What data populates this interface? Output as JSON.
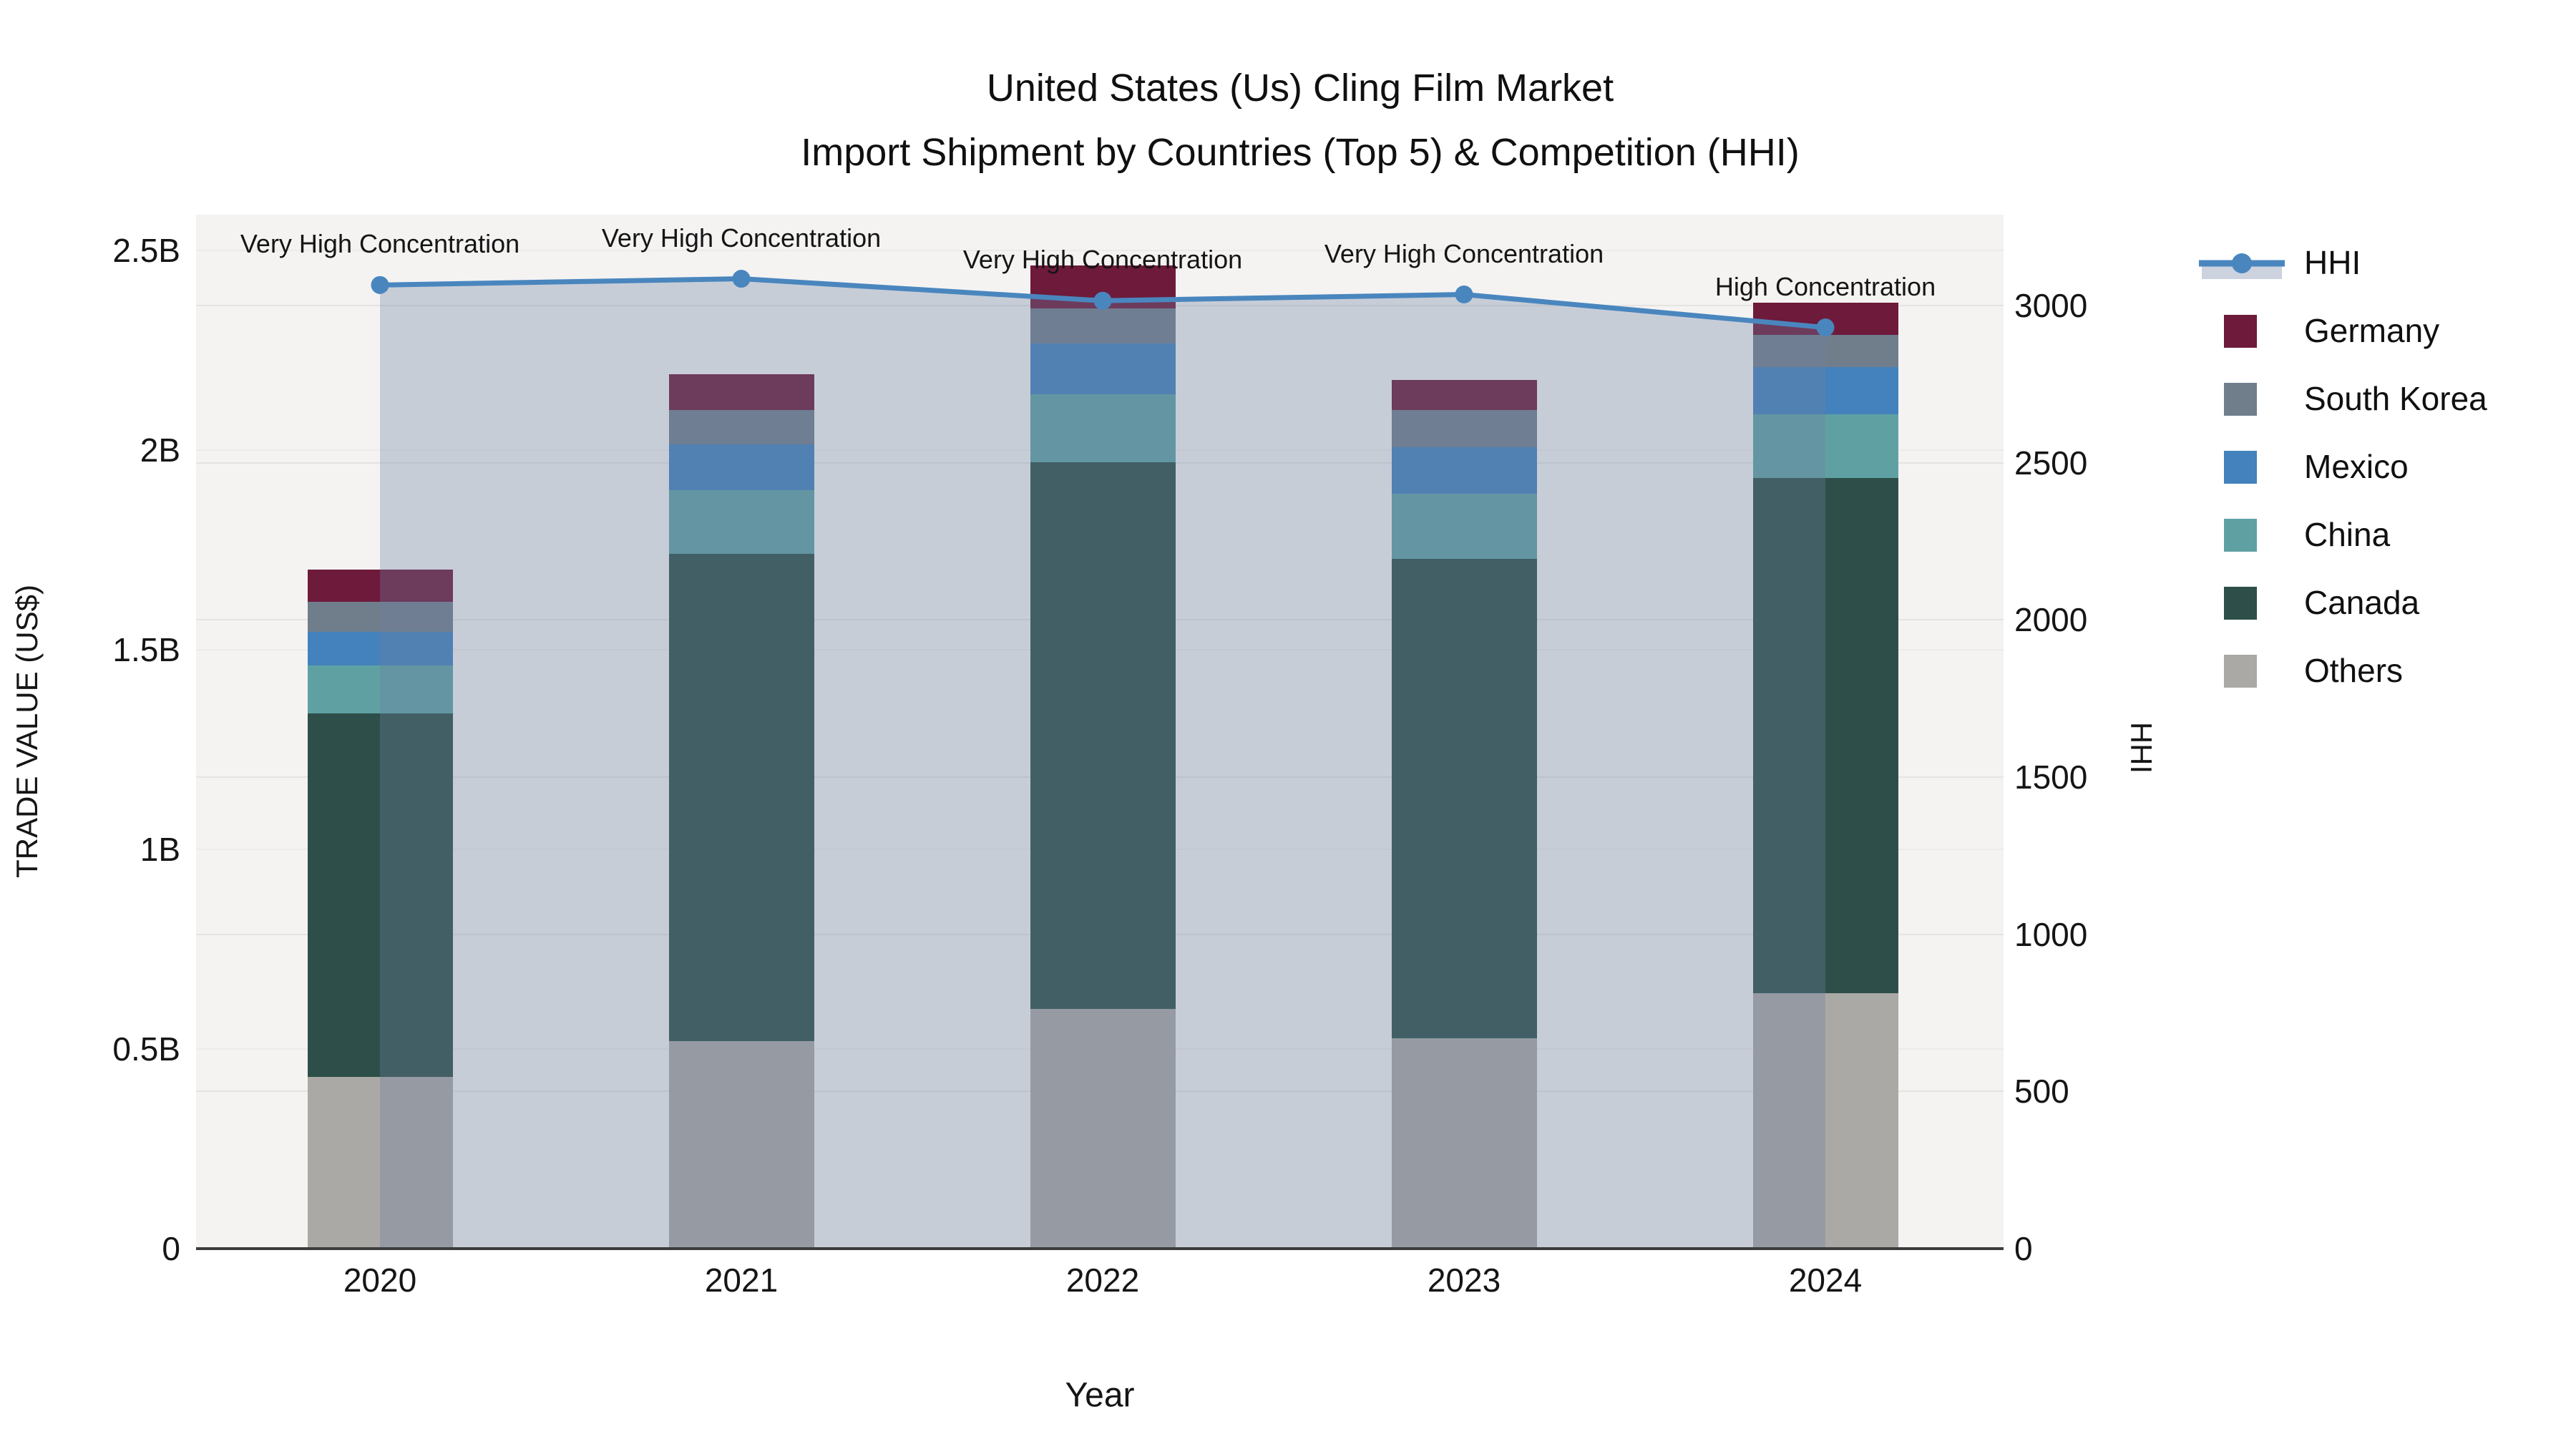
{
  "chart_data": {
    "type": "bar",
    "subtype": "stacked-bars-with-line-dual-axis",
    "title": "United States (Us) Cling Film Market",
    "subtitle": "Import Shipment by Countries (Top 5) & Competition (HHI)",
    "xlabel": "Year",
    "ylabel": "TRADE VALUE (US$)",
    "y2label": "HHI",
    "unit": "billions of US$",
    "categories": [
      "2020",
      "2021",
      "2022",
      "2023",
      "2024"
    ],
    "stack_order_bottom_to_top": [
      "Others",
      "Canada",
      "China",
      "Mexico",
      "South Korea",
      "Germany"
    ],
    "series": [
      {
        "name": "Germany",
        "color": "#6E1A3B",
        "values": [
          0.08,
          0.09,
          0.108,
          0.075,
          0.08
        ]
      },
      {
        "name": "South Korea",
        "color": "#707E8C",
        "values": [
          0.075,
          0.085,
          0.088,
          0.093,
          0.082
        ]
      },
      {
        "name": "Mexico",
        "color": "#4382BC",
        "values": [
          0.085,
          0.115,
          0.127,
          0.118,
          0.117
        ]
      },
      {
        "name": "China",
        "color": "#5FA1A3",
        "values": [
          0.12,
          0.16,
          0.17,
          0.163,
          0.16
        ]
      },
      {
        "name": "Canada",
        "color": "#2E4F49",
        "values": [
          0.91,
          1.22,
          1.37,
          1.2,
          1.29
        ]
      },
      {
        "name": "Others",
        "color": "#ABA9A5",
        "values": [
          0.43,
          0.52,
          0.6,
          0.527,
          0.64
        ]
      }
    ],
    "bar_totals": [
      1.7,
      2.19,
      2.46,
      2.18,
      2.37
    ],
    "hhi": {
      "name": "HHI",
      "line_color": "#4A86BE",
      "fill_color": "#6E80A0",
      "fill_opacity": 0.33,
      "values": [
        3065,
        3085,
        3015,
        3035,
        2930
      ],
      "annotations": [
        "Very High Concentration",
        "Very High Concentration",
        "Very High Concentration",
        "Very High Concentration",
        "High Concentration"
      ]
    },
    "y_axis": {
      "ticks": [
        {
          "label": "0",
          "value": 0
        },
        {
          "label": "0.5B",
          "value": 0.5
        },
        {
          "label": "1B",
          "value": 1
        },
        {
          "label": "1.5B",
          "value": 1.5
        },
        {
          "label": "2B",
          "value": 2
        },
        {
          "label": "2.5B",
          "value": 2.5
        }
      ],
      "range": [
        0,
        2.59
      ],
      "grid": true
    },
    "y2_axis": {
      "ticks": [
        {
          "label": "0",
          "value": 0
        },
        {
          "label": "500",
          "value": 500
        },
        {
          "label": "1000",
          "value": 1000
        },
        {
          "label": "1500",
          "value": 1500
        },
        {
          "label": "2000",
          "value": 2000
        },
        {
          "label": "2500",
          "value": 2500
        },
        {
          "label": "3000",
          "value": 3000
        }
      ],
      "range": [
        0,
        3290
      ],
      "grid": true
    },
    "legend": {
      "position": "right",
      "items": [
        "HHI",
        "Germany",
        "South Korea",
        "Mexico",
        "China",
        "Canada",
        "Others"
      ]
    },
    "colors": {
      "plot_background": "#F4F3F2",
      "axis_line": "#3C3C3C",
      "grid_left": "#ECEBE9",
      "grid_right": "#E5E4E2",
      "text": "#111111"
    }
  }
}
